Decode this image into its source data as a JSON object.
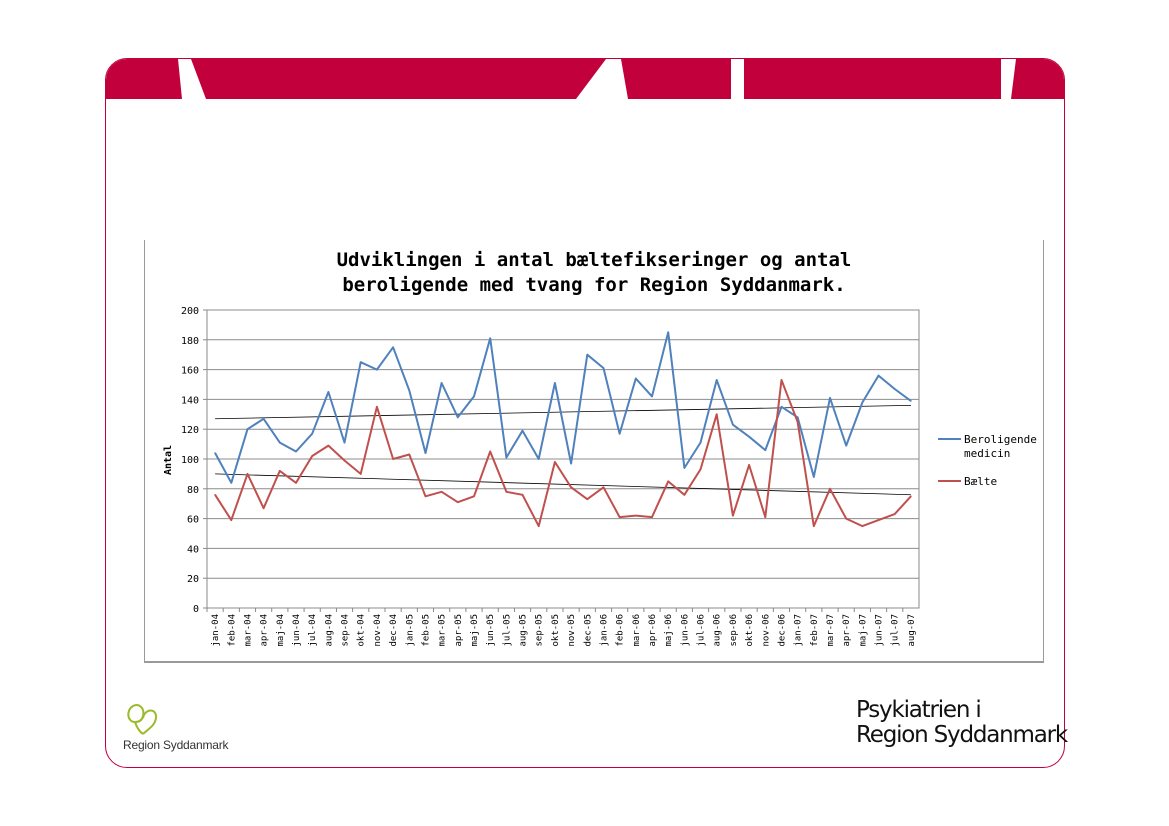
{
  "colors": {
    "brand_red": "#c1003c",
    "series_blue": "#4f81bd",
    "series_red": "#c0504d"
  },
  "footer": {
    "logo_text": "Region Syddanmark",
    "brand_line1": "Psykiatrien i",
    "brand_line2": "Region Syddanmark"
  },
  "chart_data": {
    "type": "line",
    "title_line1": "Udviklingen i antal bæltefikseringer og antal",
    "title_line2": "beroligende med tvang for Region Syddanmark.",
    "ylabel": "Antal",
    "xlabel": "",
    "ylim": [
      0,
      200
    ],
    "yticks": [
      0,
      20,
      40,
      60,
      80,
      100,
      120,
      140,
      160,
      180,
      200
    ],
    "grid": "horizontal",
    "legend_position": "right",
    "categories": [
      "jan-04",
      "feb-04",
      "mar-04",
      "apr-04",
      "maj-04",
      "jun-04",
      "jul-04",
      "aug-04",
      "sep-04",
      "okt-04",
      "nov-04",
      "dec-04",
      "jan-05",
      "feb-05",
      "mar-05",
      "apr-05",
      "maj-05",
      "jun-05",
      "jul-05",
      "aug-05",
      "sep-05",
      "okt-05",
      "nov-05",
      "dec-05",
      "jan-06",
      "feb-06",
      "mar-06",
      "apr-06",
      "maj-06",
      "jun-06",
      "jul-06",
      "aug-06",
      "sep-06",
      "okt-06",
      "nov-06",
      "dec-06",
      "jan-07",
      "feb-07",
      "mar-07",
      "apr-07",
      "maj-07",
      "jun-07",
      "jul-07",
      "aug-07"
    ],
    "series": [
      {
        "name": "Beroligende medicin",
        "legend_line1": "Beroligende",
        "legend_line2": "medicin",
        "color": "#4f81bd",
        "values": [
          104,
          84,
          120,
          127,
          111,
          105,
          117,
          145,
          111,
          165,
          160,
          175,
          146,
          104,
          151,
          128,
          142,
          181,
          101,
          119,
          100,
          151,
          97,
          170,
          161,
          117,
          154,
          142,
          185,
          94,
          111,
          153,
          123,
          115,
          106,
          135,
          128,
          88,
          141,
          109,
          138,
          156,
          147,
          139
        ]
      },
      {
        "name": "Bælte",
        "legend_line1": "Bælte",
        "color": "#c0504d",
        "values": [
          76,
          59,
          90,
          67,
          92,
          84,
          102,
          109,
          99,
          90,
          135,
          100,
          103,
          75,
          78,
          71,
          75,
          105,
          78,
          76,
          55,
          98,
          81,
          73,
          81,
          61,
          62,
          61,
          85,
          76,
          93,
          130,
          62,
          96,
          61,
          153,
          125,
          55,
          80,
          60,
          55,
          59,
          63,
          75
        ]
      }
    ],
    "trendlines": [
      {
        "series": "Beroligende medicin",
        "start": 127,
        "end": 136
      },
      {
        "series": "Bælte",
        "start": 90,
        "end": 76
      }
    ]
  }
}
